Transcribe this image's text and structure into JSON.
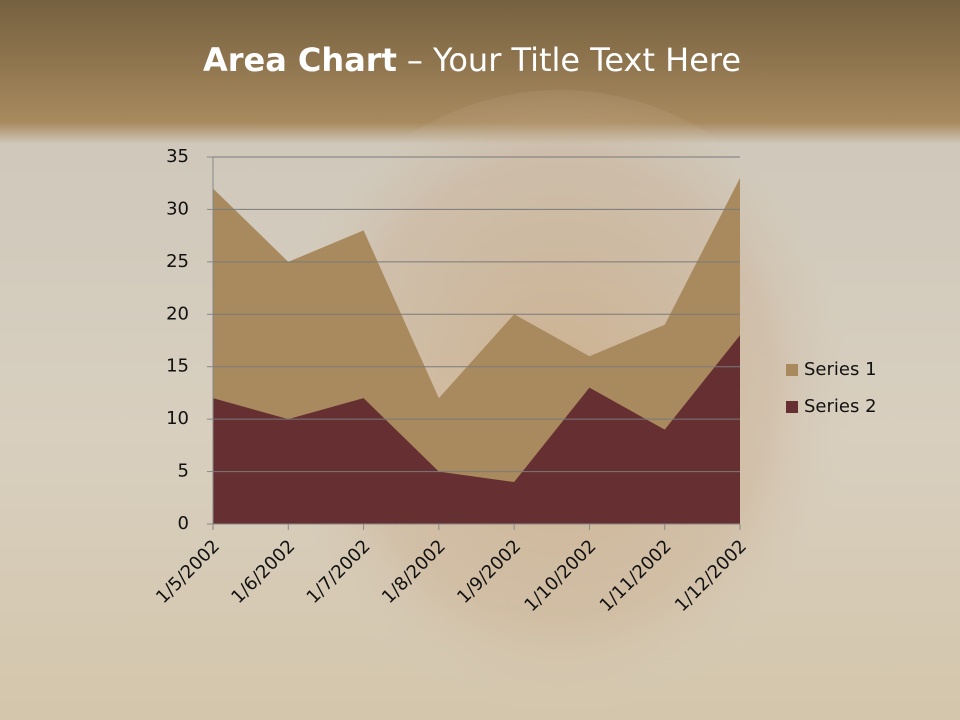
{
  "chart_data": {
    "type": "area",
    "title_parts": [
      "Area Chart",
      "– Your Title Text Here"
    ],
    "categories": [
      "1/5/2002",
      "1/6/2002",
      "1/7/2002",
      "1/8/2002",
      "1/9/2002",
      "1/10/2002",
      "1/11/2002",
      "1/12/2002"
    ],
    "series": [
      {
        "name": "Series 1",
        "color": "#a88a5e",
        "values": [
          32,
          25,
          28,
          12,
          20,
          16,
          19,
          33
        ]
      },
      {
        "name": "Series 2",
        "color": "#662f31",
        "values": [
          12,
          10,
          12,
          5,
          4,
          13,
          9,
          18
        ]
      }
    ],
    "ylim": [
      0,
      35
    ],
    "yticks": [
      0,
      5,
      10,
      15,
      20,
      25,
      30,
      35
    ],
    "grid": true,
    "legend": "right"
  }
}
